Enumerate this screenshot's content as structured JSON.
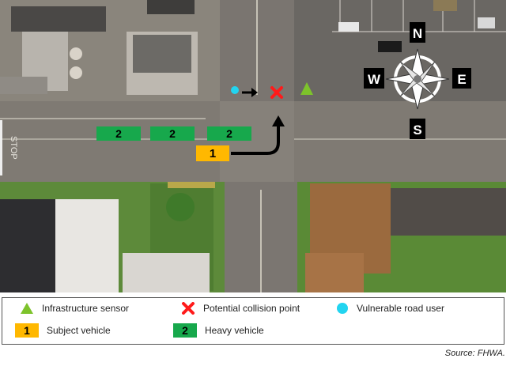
{
  "compass": {
    "north": "N",
    "south": "S",
    "east": "E",
    "west": "W"
  },
  "road_marking": "STOP",
  "scene_labels": {
    "subject_vehicle": "1",
    "heavy_vehicles": [
      "2",
      "2",
      "2"
    ]
  },
  "legend": {
    "items": [
      {
        "symbol": "green-triangle",
        "label": "Infrastructure sensor"
      },
      {
        "symbol": "red-x",
        "label": "Potential collision point"
      },
      {
        "symbol": "cyan-circle",
        "label": "Vulnerable road user"
      },
      {
        "symbol": "badge",
        "badge_text": "1",
        "label": "Subject vehicle"
      },
      {
        "symbol": "badge",
        "badge_text": "2",
        "label": "Heavy vehicle"
      }
    ]
  },
  "source": "Source: FHWA.",
  "colors": {
    "sensor": "#7dc32b",
    "collision": "#ff1a1a",
    "vru": "#22d4f0",
    "subject_vehicle": "#ffb800",
    "heavy_vehicle": "#17a84c",
    "path_arrow": "#000000"
  }
}
